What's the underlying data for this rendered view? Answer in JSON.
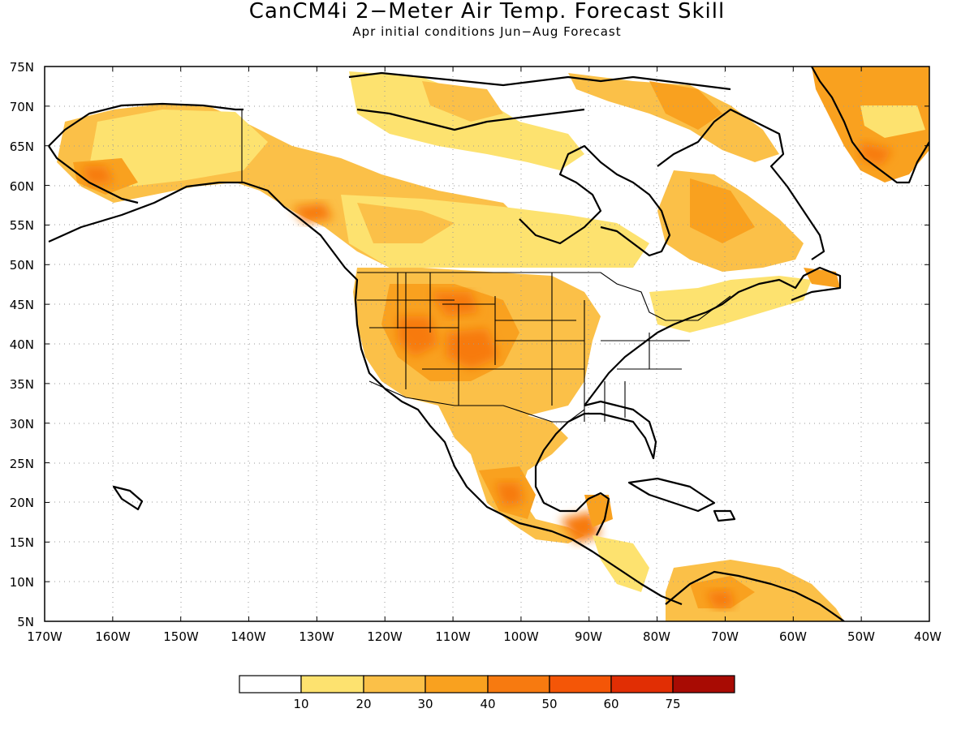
{
  "title": "CanCM4i 2−Meter Air Temp. Forecast Skill",
  "subtitle": "Apr initial conditions  Jun−Aug Forecast",
  "map": {
    "lon_range": [
      -170,
      -40
    ],
    "lat_range": [
      5,
      75
    ],
    "lat_ticks": [
      "75N",
      "70N",
      "65N",
      "60N",
      "55N",
      "50N",
      "45N",
      "40N",
      "35N",
      "30N",
      "25N",
      "20N",
      "15N",
      "10N",
      "5N"
    ],
    "lon_ticks": [
      "170W",
      "160W",
      "150W",
      "140W",
      "130W",
      "120W",
      "110W",
      "100W",
      "90W",
      "80W",
      "70W",
      "60W",
      "50W",
      "40W"
    ]
  },
  "colorbar": {
    "labels": [
      "10",
      "20",
      "30",
      "40",
      "50",
      "60",
      "75"
    ],
    "colors": [
      "#ffffff",
      "#fde26f",
      "#fbc048",
      "#f9a11f",
      "#f77a10",
      "#f45607",
      "#e12e04",
      "#a80b03"
    ]
  }
}
